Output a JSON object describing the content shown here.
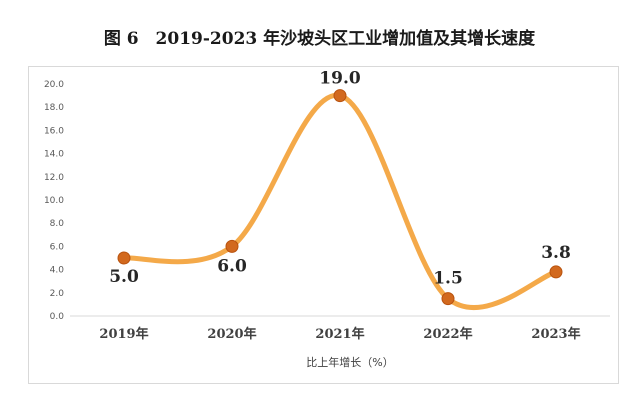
{
  "title": "图 6　2019-2023 年沙坡头区工业增加值及其增长速度",
  "chart_data": {
    "type": "line",
    "categories": [
      "2019年",
      "2020年",
      "2021年",
      "2022年",
      "2023年"
    ],
    "series": [
      {
        "values": [
          5.0,
          6.0,
          19.0,
          1.5,
          3.8
        ]
      }
    ],
    "data_labels": [
      "5.0",
      "6.0",
      "19.0",
      "1.5",
      "3.8"
    ],
    "y_ticks": [
      "0.0",
      "2.0",
      "4.0",
      "6.0",
      "8.0",
      "10.0",
      "12.0",
      "14.0",
      "16.0",
      "18.0",
      "20.0"
    ],
    "xlabel": "比上年增长（%）",
    "ylabel": "",
    "ylim": [
      0,
      20
    ],
    "grid": false,
    "colors": {
      "line": "#F4A949",
      "marker_fill": "#D2691E",
      "marker_stroke": "#B8520E"
    }
  }
}
